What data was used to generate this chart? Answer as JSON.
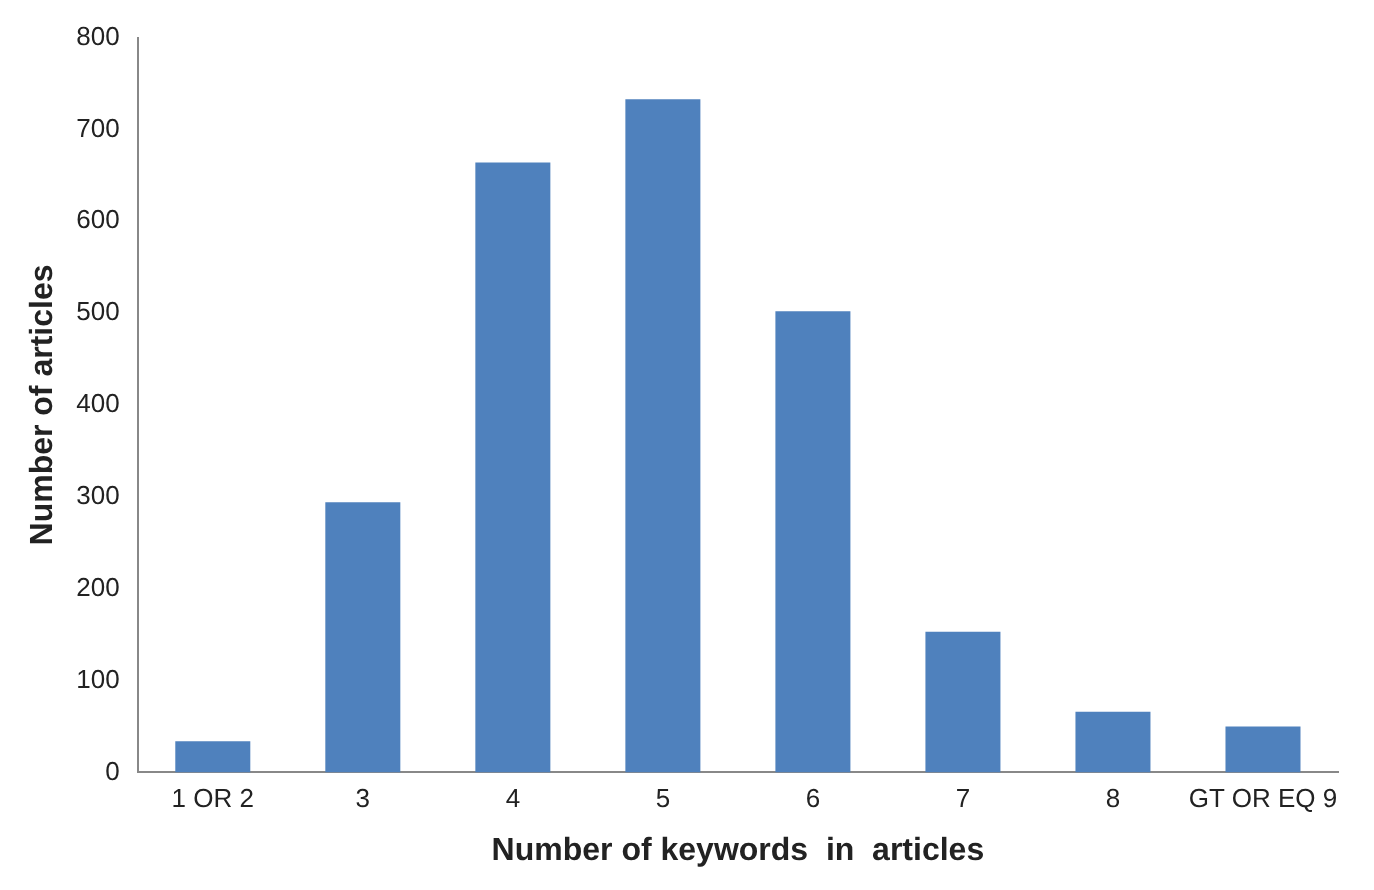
{
  "chart_data": {
    "type": "bar",
    "xlabel": "Number of keywords  in  articles",
    "ylabel": "Number of articles",
    "categories": [
      "1 OR 2",
      "3",
      "4",
      "5",
      "6",
      "7",
      "8",
      "GT OR EQ 9"
    ],
    "values": [
      34,
      294,
      664,
      733,
      502,
      153,
      66,
      50
    ],
    "color": "#4f81bd",
    "ylim": [
      0,
      800
    ],
    "yticks": [
      0,
      100,
      200,
      300,
      400,
      500,
      600,
      700,
      800
    ],
    "grid": false,
    "legend": false
  }
}
